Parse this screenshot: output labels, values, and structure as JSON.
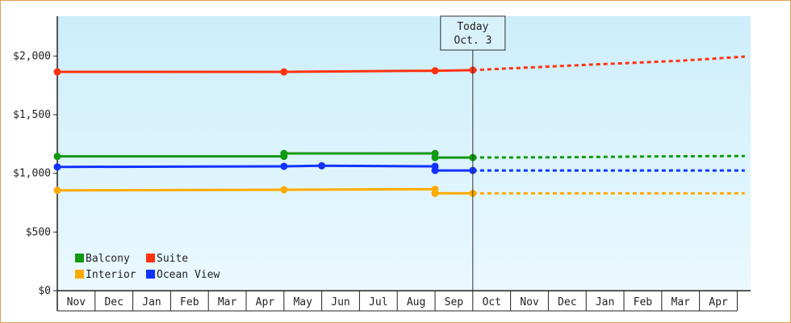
{
  "chart_data": {
    "type": "line",
    "title": "",
    "xlabel": "",
    "ylabel": "",
    "ylim": [
      0,
      2340
    ],
    "y_ticks": [
      0,
      500,
      1000,
      1500,
      2000
    ],
    "y_tick_labels": [
      "$0",
      "$500",
      "$1,000",
      "$1,500",
      "$2,000"
    ],
    "grid": false,
    "background": "gradient light blue",
    "legend_placement": "bottom-left",
    "months": [
      "Nov",
      "Dec",
      "Jan",
      "Feb",
      "Mar",
      "Apr",
      "May",
      "Jun",
      "Jul",
      "Aug",
      "Sep",
      "Oct",
      "Nov",
      "Dec",
      "Jan",
      "Feb",
      "Mar",
      "Apr"
    ],
    "today": {
      "line1": "Today",
      "line2": "Oct. 3",
      "x": 11.0
    },
    "series": [
      {
        "name": "Balcony",
        "color": "#119911",
        "points": [
          [
            0.0,
            1145
          ],
          [
            6.0,
            1145
          ],
          [
            6.0,
            1170
          ],
          [
            10.0,
            1170
          ],
          [
            10.0,
            1135
          ],
          [
            11.0,
            1135
          ]
        ],
        "markers": [
          [
            0.0,
            1145
          ],
          [
            6.0,
            1145
          ],
          [
            6.0,
            1170
          ],
          [
            10.0,
            1170
          ],
          [
            10.0,
            1135
          ],
          [
            11.0,
            1135
          ]
        ],
        "forecast": [
          [
            11.0,
            1135
          ],
          [
            13.3,
            1137
          ],
          [
            16.0,
            1145
          ],
          [
            18.2,
            1148
          ]
        ]
      },
      {
        "name": "Suite",
        "color": "#ff3311",
        "points": [
          [
            0.0,
            1865
          ],
          [
            6.0,
            1865
          ],
          [
            10.0,
            1875
          ],
          [
            11.0,
            1880
          ]
        ],
        "markers": [
          [
            0.0,
            1865
          ],
          [
            6.0,
            1865
          ],
          [
            10.0,
            1875
          ],
          [
            11.0,
            1880
          ]
        ],
        "forecast": [
          [
            11.0,
            1880
          ],
          [
            14.0,
            1925
          ],
          [
            16.5,
            1960
          ],
          [
            18.2,
            1995
          ]
        ]
      },
      {
        "name": "Interior",
        "color": "#ffaa00",
        "points": [
          [
            0.0,
            855
          ],
          [
            6.0,
            860
          ],
          [
            10.0,
            865
          ],
          [
            10.0,
            830
          ],
          [
            11.0,
            830
          ]
        ],
        "markers": [
          [
            0.0,
            855
          ],
          [
            6.0,
            860
          ],
          [
            10.0,
            865
          ],
          [
            10.0,
            830
          ],
          [
            11.0,
            830
          ]
        ],
        "forecast": [
          [
            11.0,
            830
          ],
          [
            18.2,
            830
          ]
        ]
      },
      {
        "name": "Ocean View",
        "color": "#1133ff",
        "points": [
          [
            0.0,
            1055
          ],
          [
            6.0,
            1060
          ],
          [
            7.0,
            1065
          ],
          [
            10.0,
            1060
          ],
          [
            10.0,
            1025
          ],
          [
            11.0,
            1025
          ]
        ],
        "markers": [
          [
            0.0,
            1055
          ],
          [
            6.0,
            1060
          ],
          [
            7.0,
            1065
          ],
          [
            10.0,
            1060
          ],
          [
            10.0,
            1025
          ],
          [
            11.0,
            1025
          ]
        ],
        "forecast": [
          [
            11.0,
            1025
          ],
          [
            18.2,
            1025
          ]
        ]
      }
    ],
    "legend": [
      {
        "name": "Balcony",
        "color": "#119911"
      },
      {
        "name": "Suite",
        "color": "#ff3311"
      },
      {
        "name": "Interior",
        "color": "#ffaa00"
      },
      {
        "name": "Ocean View",
        "color": "#1133ff"
      }
    ]
  }
}
